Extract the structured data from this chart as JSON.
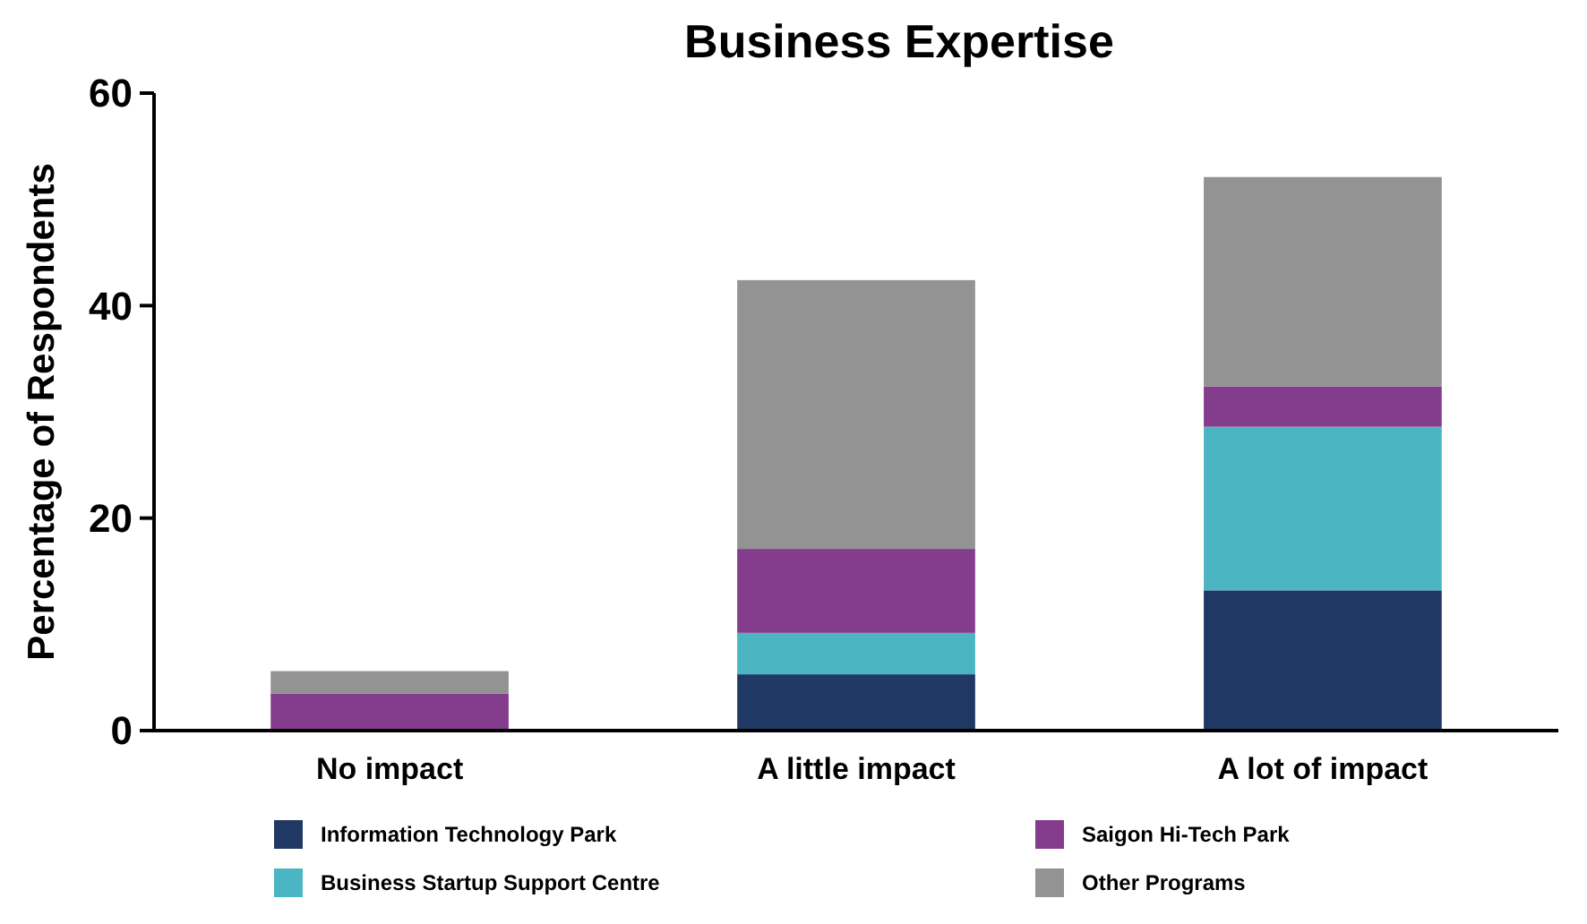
{
  "chart_data": {
    "type": "bar",
    "title": "Business Expertise",
    "ylabel": "Percentage of Respondents",
    "categories": [
      "No impact",
      "A little impact",
      "A lot of impact"
    ],
    "stacked": true,
    "ylim": [
      0,
      60
    ],
    "yticks": [
      0,
      20,
      40,
      60
    ],
    "legend": "bottom",
    "grid": false,
    "series": [
      {
        "name": "Information Technology Park",
        "color": "#203864",
        "values": [
          0,
          5.3,
          13.2
        ]
      },
      {
        "name": "Business Startup Support Centre",
        "color": "#4bb5c4",
        "values": [
          0,
          3.9,
          15.4
        ]
      },
      {
        "name": "Saigon Hi-Tech Park",
        "color": "#843c8c",
        "values": [
          3.5,
          7.9,
          3.8
        ]
      },
      {
        "name": "Other Programs",
        "color": "#939393",
        "values": [
          2.1,
          25.3,
          19.7
        ]
      }
    ]
  }
}
